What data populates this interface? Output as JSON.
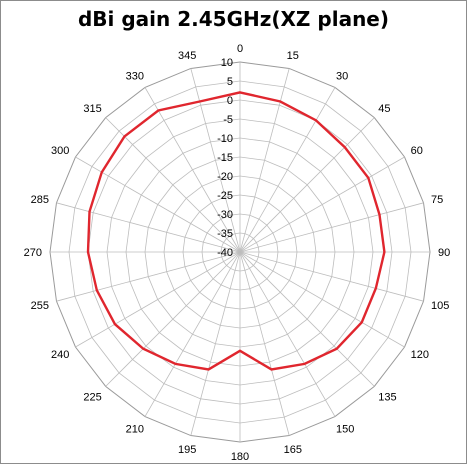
{
  "chart_data": {
    "type": "radar",
    "title": "dBi gain 2.45GHz(XZ plane)",
    "angle_labels": [
      "0",
      "15",
      "30",
      "45",
      "60",
      "75",
      "90",
      "105",
      "120",
      "135",
      "150",
      "165",
      "180",
      "195",
      "210",
      "225",
      "240",
      "255",
      "270",
      "285",
      "300",
      "315",
      "330",
      "345"
    ],
    "radial_ticks": [
      "10",
      "5",
      "0",
      "-5",
      "-10",
      "-15",
      "-20",
      "-25",
      "-30",
      "-35",
      "-40"
    ],
    "rlim": [
      -40,
      10
    ],
    "grid": true,
    "series": [
      {
        "color": "#e0262e",
        "angles": [
          0,
          15,
          30,
          45,
          60,
          75,
          90,
          105,
          120,
          135,
          150,
          165,
          180,
          195,
          210,
          225,
          240,
          255,
          270,
          285,
          300,
          315,
          330,
          345
        ],
        "values": [
          2,
          1,
          0,
          -1,
          -1,
          -2,
          -2,
          -3,
          -3,
          -4,
          -6,
          -8,
          -14,
          -8,
          -6,
          -4,
          -2,
          -1,
          0,
          1,
          2,
          3,
          3,
          1
        ]
      }
    ]
  }
}
